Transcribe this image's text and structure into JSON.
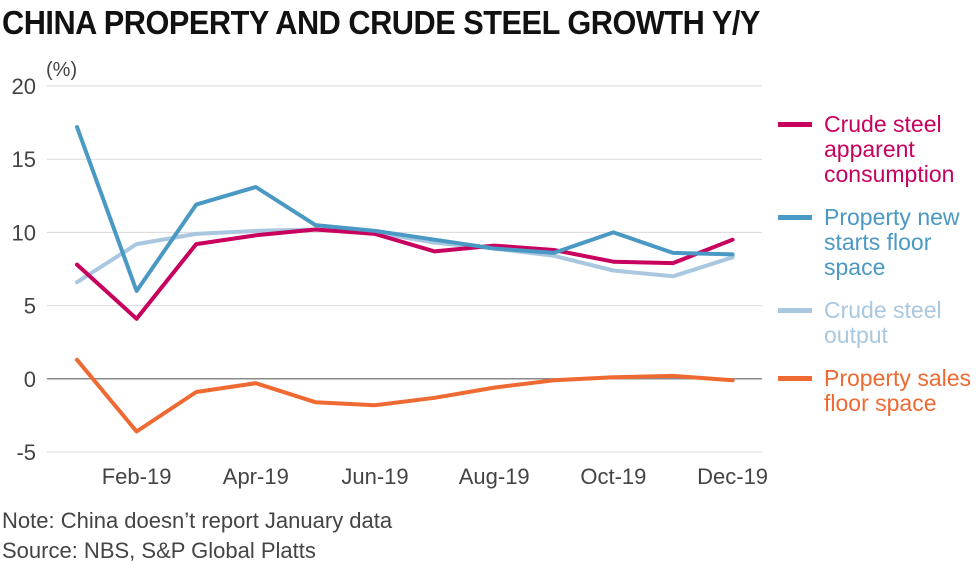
{
  "title": "CHINA PROPERTY AND CRUDE STEEL GROWTH Y/Y",
  "note": "Note: China doesn’t report January data",
  "source": "Source: NBS, S&P Global Platts",
  "chart_data": {
    "type": "line",
    "title": "CHINA PROPERTY AND CRUDE STEEL GROWTH Y/Y",
    "ylabel": "(%)",
    "xlabel": "",
    "ylim": [
      -5,
      20
    ],
    "yticks": [
      20,
      15,
      10,
      5,
      0,
      -5
    ],
    "grid": true,
    "x": [
      "Jan-19",
      "Feb-19",
      "Mar-19",
      "Apr-19",
      "May-19",
      "Jun-19",
      "Jul-19",
      "Aug-19",
      "Sep-19",
      "Oct-19",
      "Nov-19",
      "Dec-19"
    ],
    "xtick_labels": [
      "Feb-19",
      "Apr-19",
      "Jun-19",
      "Aug-19",
      "Oct-19",
      "Dec-19"
    ],
    "legend_position": "right",
    "series": [
      {
        "name": "Crude steel output",
        "color": "#a9c8e0",
        "values": [
          6.6,
          9.2,
          9.9,
          10.1,
          10.2,
          10.0,
          9.3,
          8.9,
          8.4,
          7.4,
          7.0,
          8.3
        ]
      },
      {
        "name": "Crude steel apparent consumption",
        "color": "#c8005e",
        "values": [
          7.8,
          4.1,
          9.2,
          9.8,
          10.2,
          9.9,
          8.7,
          9.1,
          8.8,
          8.0,
          7.9,
          9.5
        ]
      },
      {
        "name": "Property new starts floor space",
        "color": "#4a98c4",
        "values": [
          17.2,
          6.0,
          11.9,
          13.1,
          10.5,
          10.1,
          9.5,
          8.9,
          8.6,
          10.0,
          8.6,
          8.5
        ]
      },
      {
        "name": "Property sales floor space",
        "color": "#ef6a33",
        "values": [
          1.3,
          -3.6,
          -0.9,
          -0.3,
          -1.6,
          -1.8,
          -1.3,
          -0.6,
          -0.1,
          0.1,
          0.2,
          -0.1
        ]
      }
    ],
    "legend": [
      {
        "label": "Crude steel apparent consumption",
        "lines": [
          "Crude steel",
          "apparent",
          "consumption"
        ],
        "color": "#c8005e"
      },
      {
        "label": "Property new starts floor space",
        "lines": [
          "Property new",
          "starts floor",
          "space"
        ],
        "color": "#4a98c4"
      },
      {
        "label": "Crude steel output",
        "lines": [
          "Crude steel",
          "output"
        ],
        "color": "#a9c8e0"
      },
      {
        "label": "Property sales floor space",
        "lines": [
          "Property sales",
          "floor space"
        ],
        "color": "#ef6a33"
      }
    ]
  }
}
